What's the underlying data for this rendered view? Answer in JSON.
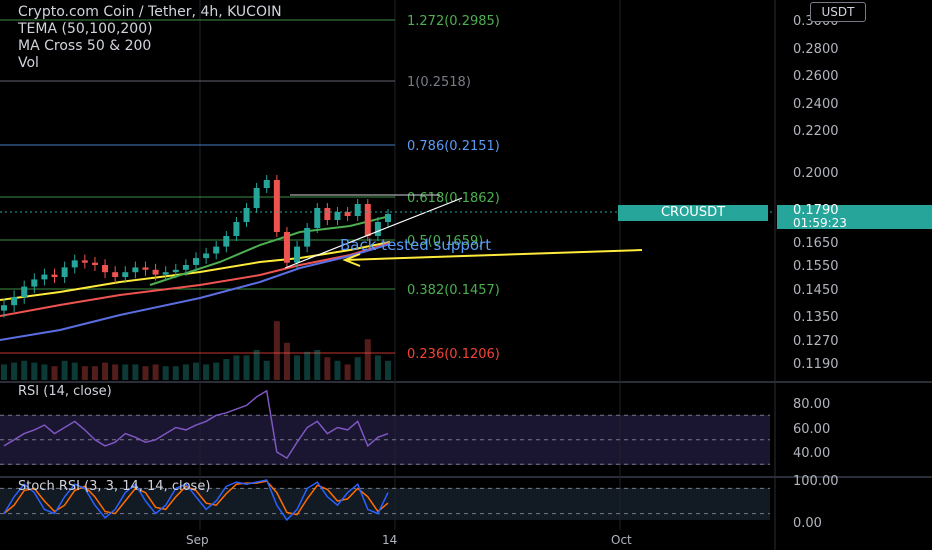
{
  "legend": {
    "title": "Crypto.com Coin / Tether, 4h, KUCOIN",
    "indicator1": "TEMA (50,100,200)",
    "indicator2": "MA Cross 50 & 200",
    "indicator3": "Vol"
  },
  "currency_button": "USDT",
  "fib_levels": [
    {
      "label": "1.272(0.2985)",
      "price": 0.2985,
      "color": "#4caf50"
    },
    {
      "label": "1(0.2518)",
      "price": 0.2518,
      "color": "#787b86"
    },
    {
      "label": "0.786(0.2151)",
      "price": 0.2151,
      "color": "#5b9cf6"
    },
    {
      "label": "0.618(0.1862)",
      "price": 0.1862,
      "color": "#4caf50"
    },
    {
      "label": "0.5(0.1659)",
      "price": 0.1659,
      "color": "#4caf50"
    },
    {
      "label": "0.382(0.1457)",
      "price": 0.1457,
      "color": "#4caf50"
    },
    {
      "label": "0.236(0.1206)",
      "price": 0.1206,
      "color": "#f44336"
    }
  ],
  "price_axis_labels": [
    "0.3000",
    "0.2800",
    "0.2600",
    "0.2400",
    "0.2200",
    "0.2000",
    "0.1650",
    "0.1550",
    "0.1450",
    "0.1350",
    "0.1270",
    "0.1190"
  ],
  "symbol_tag": "CROUSDT",
  "last_price": "0.1790",
  "countdown": "01:59:23",
  "annotation_text": "Back tested support",
  "rsi": {
    "label": "RSI (14, close)",
    "axis_labels": [
      "80.00",
      "60.00",
      "40.00"
    ]
  },
  "stoch": {
    "label": "Stoch RSI (3, 3, 14, 14, close)",
    "axis_labels": [
      "100.00",
      "0.00"
    ]
  },
  "time_axis_labels": [
    "Sep",
    "14",
    "Oct"
  ],
  "colors": {
    "up": "#26a69a",
    "down": "#ef5350",
    "rsi": "#7e57c2",
    "stoch_k": "#2962ff",
    "stoch_d": "#ff6d00",
    "tag_bg": "#26a69a"
  },
  "chart_data": {
    "type": "candlestick",
    "series": [
      {
        "name": "CROUSDT",
        "close": [
          0.139,
          0.142,
          0.146,
          0.149,
          0.151,
          0.15,
          0.154,
          0.157,
          0.156,
          0.155,
          0.152,
          0.15,
          0.152,
          0.154,
          0.153,
          0.151,
          0.152,
          0.153,
          0.155,
          0.158,
          0.16,
          0.163,
          0.168,
          0.175,
          0.182,
          0.192,
          0.196,
          0.17,
          0.156,
          0.163,
          0.172,
          0.182,
          0.176,
          0.18,
          0.178,
          0.184,
          0.168,
          0.175,
          0.179
        ]
      }
    ],
    "rsi_values": [
      45,
      50,
      55,
      58,
      62,
      55,
      60,
      65,
      58,
      50,
      45,
      48,
      55,
      52,
      48,
      50,
      55,
      60,
      58,
      62,
      65,
      70,
      72,
      75,
      78,
      85,
      90,
      40,
      35,
      48,
      60,
      65,
      55,
      60,
      58,
      65,
      45,
      52,
      55
    ],
    "stoch_values": [
      20,
      60,
      90,
      70,
      30,
      20,
      60,
      90,
      80,
      40,
      10,
      30,
      70,
      90,
      50,
      20,
      40,
      80,
      90,
      60,
      30,
      50,
      85,
      95,
      90,
      95,
      100,
      40,
      5,
      30,
      80,
      95,
      60,
      40,
      70,
      90,
      30,
      20,
      70
    ]
  }
}
